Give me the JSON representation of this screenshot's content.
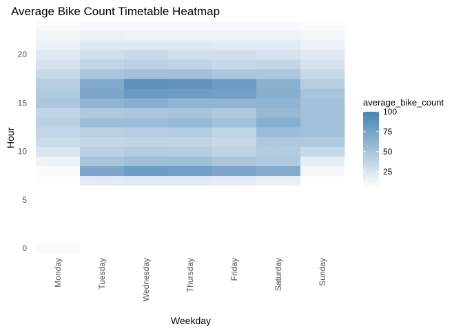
{
  "chart_data": {
    "type": "heatmap",
    "title": "Average Bike Count Timetable Heatmap",
    "xlabel": "Weekday",
    "ylabel": "Hour",
    "x_categories": [
      "Monday",
      "Tuesday",
      "Wednesday",
      "Thursday",
      "Friday",
      "Saturday",
      "Sunday"
    ],
    "y_values": [
      0,
      1,
      2,
      3,
      4,
      5,
      6,
      7,
      8,
      9,
      10,
      11,
      12,
      13,
      14,
      15,
      16,
      17,
      18,
      19,
      20,
      21,
      22,
      23
    ],
    "y_ticks": [
      0,
      5,
      10,
      15,
      20
    ],
    "ylim": [
      -0.5,
      23.5
    ],
    "grid": true,
    "legend": {
      "title": "average_bike_count",
      "position": "right",
      "ticks": [
        25,
        50,
        75,
        100
      ],
      "range": [
        5,
        100
      ],
      "color_low": "#ffffff",
      "color_high": "#4682b4"
    },
    "values": [
      [
        8,
        3,
        2,
        2,
        3,
        3,
        6
      ],
      [
        6,
        2,
        2,
        2,
        2,
        3,
        5
      ],
      [
        5,
        2,
        2,
        2,
        2,
        2,
        4
      ],
      [
        4,
        2,
        2,
        2,
        2,
        2,
        3
      ],
      [
        3,
        2,
        2,
        2,
        2,
        2,
        3
      ],
      [
        3,
        2,
        2,
        2,
        2,
        2,
        3
      ],
      [
        4,
        5,
        6,
        5,
        5,
        5,
        4
      ],
      [
        6,
        20,
        22,
        21,
        19,
        16,
        6
      ],
      [
        8,
        72,
        80,
        78,
        72,
        68,
        11
      ],
      [
        14,
        50,
        55,
        54,
        48,
        46,
        19
      ],
      [
        24,
        40,
        44,
        42,
        38,
        44,
        33
      ],
      [
        32,
        36,
        38,
        38,
        34,
        46,
        46
      ],
      [
        36,
        40,
        42,
        44,
        38,
        55,
        52
      ],
      [
        40,
        55,
        55,
        58,
        52,
        66,
        53
      ],
      [
        38,
        46,
        48,
        50,
        46,
        58,
        53
      ],
      [
        48,
        62,
        66,
        62,
        62,
        62,
        52
      ],
      [
        46,
        72,
        82,
        80,
        78,
        66,
        50
      ],
      [
        42,
        70,
        88,
        86,
        80,
        64,
        42
      ],
      [
        34,
        48,
        52,
        52,
        48,
        48,
        34
      ],
      [
        26,
        38,
        40,
        38,
        34,
        36,
        26
      ],
      [
        22,
        30,
        33,
        30,
        30,
        27,
        21
      ],
      [
        16,
        22,
        22,
        22,
        20,
        21,
        15
      ],
      [
        12,
        15,
        14,
        14,
        14,
        14,
        11
      ],
      [
        8,
        9,
        9,
        9,
        9,
        9,
        8
      ]
    ]
  }
}
